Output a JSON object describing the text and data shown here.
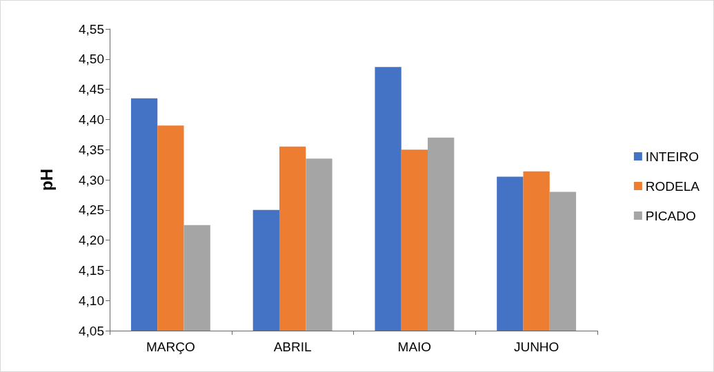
{
  "chart_data": {
    "type": "bar",
    "ylabel": "pH",
    "categories": [
      "MARÇO",
      "ABRIL",
      "MAIO",
      "JUNHO"
    ],
    "series": [
      {
        "name": "INTEIRO",
        "color": "#4472c4",
        "values": [
          4.435,
          4.25,
          4.487,
          4.305
        ]
      },
      {
        "name": "RODELA",
        "color": "#ed7d31",
        "values": [
          4.39,
          4.355,
          4.35,
          4.314
        ]
      },
      {
        "name": "PICADO",
        "color": "#a5a5a5",
        "values": [
          4.225,
          4.335,
          4.37,
          4.28
        ]
      }
    ],
    "ylim": [
      4.05,
      4.55
    ],
    "yticks": [
      {
        "value": 4.05,
        "label": "4,05"
      },
      {
        "value": 4.1,
        "label": "4,10"
      },
      {
        "value": 4.15,
        "label": "4,15"
      },
      {
        "value": 4.2,
        "label": "4,20"
      },
      {
        "value": 4.25,
        "label": "4,25"
      },
      {
        "value": 4.3,
        "label": "4,30"
      },
      {
        "value": 4.35,
        "label": "4,35"
      },
      {
        "value": 4.4,
        "label": "4,40"
      },
      {
        "value": 4.45,
        "label": "4,45"
      },
      {
        "value": 4.5,
        "label": "4,50"
      },
      {
        "value": 4.55,
        "label": "4,55"
      }
    ],
    "grid": false,
    "legend": "right"
  }
}
